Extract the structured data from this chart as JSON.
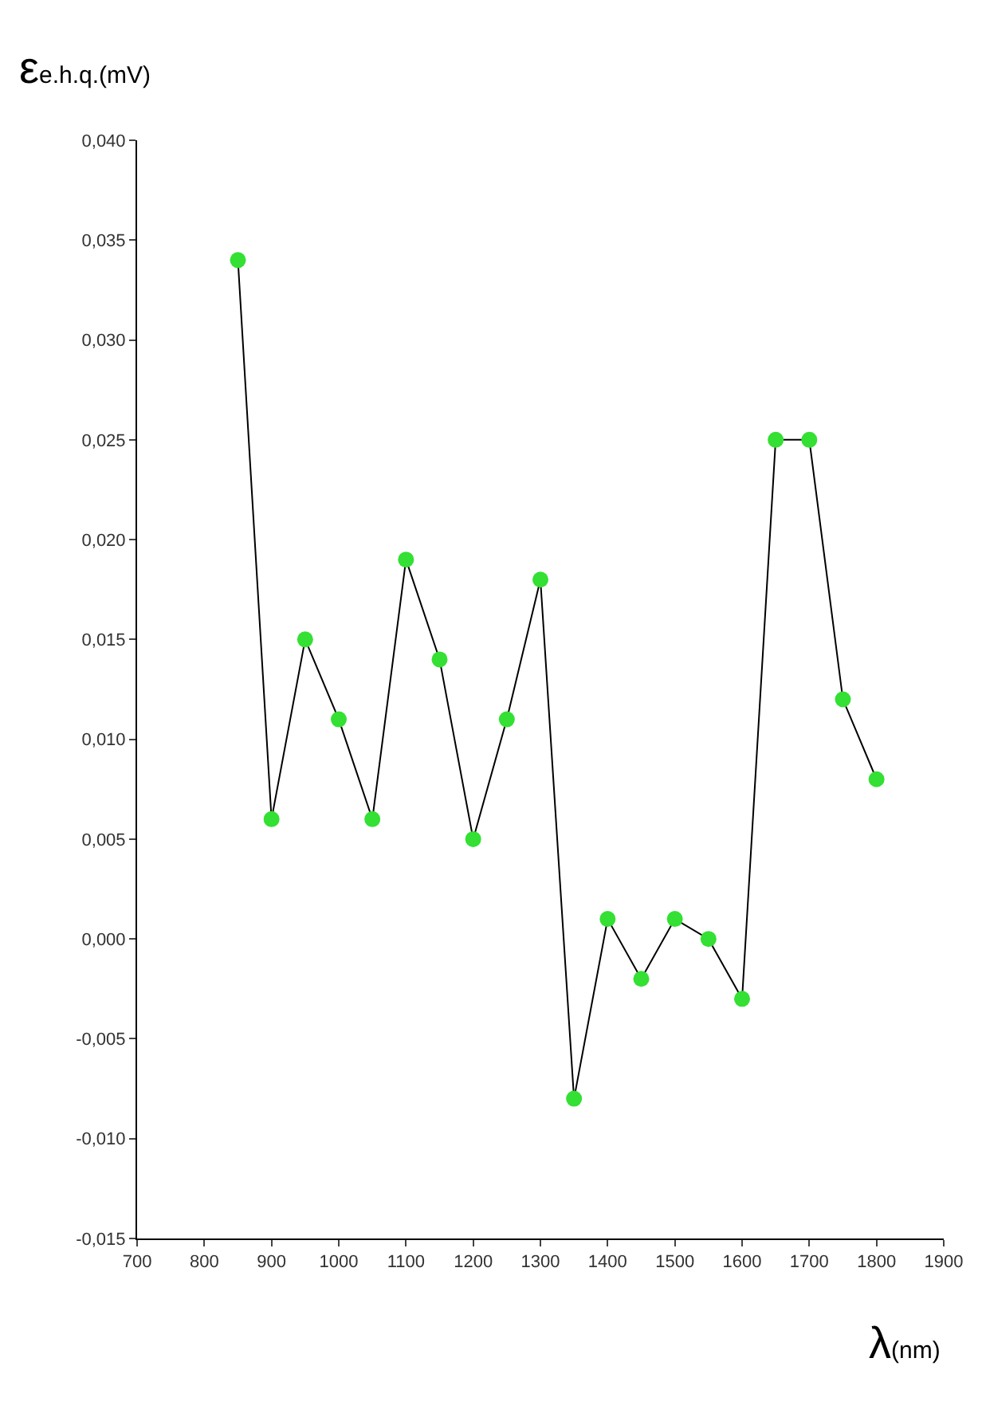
{
  "chart_data": {
    "type": "line",
    "xlabel": "λ$_{(nm)}$",
    "ylabel": "ε$_{e.h.q.(mV)}$",
    "x": [
      850,
      900,
      950,
      1000,
      1050,
      1100,
      1150,
      1200,
      1250,
      1300,
      1350,
      1400,
      1450,
      1500,
      1550,
      1600,
      1650,
      1700,
      1750,
      1800
    ],
    "series": [
      {
        "color": "#33e033",
        "values": [
          0.034,
          0.006,
          0.015,
          0.011,
          0.006,
          0.019,
          0.014,
          0.005,
          0.011,
          0.018,
          -0.008,
          0.001,
          -0.002,
          0.001,
          0.0,
          -0.003,
          0.025,
          0.025,
          0.012,
          0.008
        ]
      }
    ],
    "xlim": [
      700,
      1900
    ],
    "xticks": [
      700,
      800,
      900,
      1000,
      1100,
      1200,
      1300,
      1400,
      1500,
      1600,
      1700,
      1800,
      1900
    ],
    "ylim": [
      -0.015,
      0.04
    ],
    "yticks": [
      {
        "value": -0.015,
        "label": "-0,015"
      },
      {
        "value": -0.01,
        "label": "-0,010"
      },
      {
        "value": -0.005,
        "label": "-0,005"
      },
      {
        "value": 0.0,
        "label": "0,000"
      },
      {
        "value": 0.005,
        "label": "0,005"
      },
      {
        "value": 0.01,
        "label": "0,010"
      },
      {
        "value": 0.015,
        "label": "0,015"
      },
      {
        "value": 0.02,
        "label": "0,020"
      },
      {
        "value": 0.025,
        "label": "0,025"
      },
      {
        "value": 0.03,
        "label": "0,030"
      },
      {
        "value": 0.035,
        "label": "0,035"
      },
      {
        "value": 0.04,
        "label": "0,040"
      }
    ],
    "marker": "circle",
    "line_style": "solid"
  }
}
